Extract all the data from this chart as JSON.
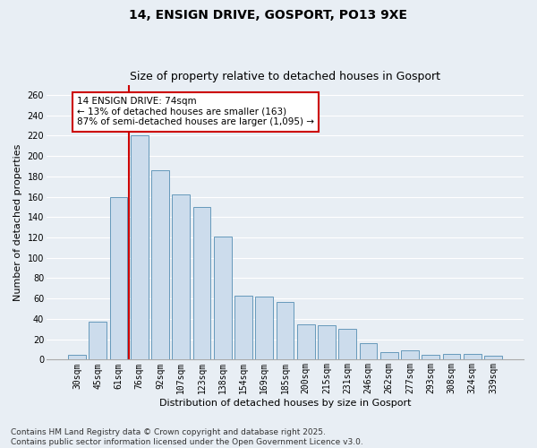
{
  "title1": "14, ENSIGN DRIVE, GOSPORT, PO13 9XE",
  "title2": "Size of property relative to detached houses in Gosport",
  "xlabel": "Distribution of detached houses by size in Gosport",
  "ylabel": "Number of detached properties",
  "categories": [
    "30sqm",
    "45sqm",
    "61sqm",
    "76sqm",
    "92sqm",
    "107sqm",
    "123sqm",
    "138sqm",
    "154sqm",
    "169sqm",
    "185sqm",
    "200sqm",
    "215sqm",
    "231sqm",
    "246sqm",
    "262sqm",
    "277sqm",
    "293sqm",
    "308sqm",
    "324sqm",
    "339sqm"
  ],
  "values": [
    5,
    37,
    160,
    220,
    186,
    162,
    150,
    121,
    63,
    62,
    57,
    35,
    34,
    30,
    16,
    7,
    9,
    5,
    6,
    6,
    4
  ],
  "bar_color": "#ccdcec",
  "bar_edge_color": "#6699bb",
  "vline_color": "#cc0000",
  "annotation_text": "14 ENSIGN DRIVE: 74sqm\n← 13% of detached houses are smaller (163)\n87% of semi-detached houses are larger (1,095) →",
  "annotation_box_color": "white",
  "annotation_box_edge": "#cc0000",
  "ylim": [
    0,
    270
  ],
  "yticks": [
    0,
    20,
    40,
    60,
    80,
    100,
    120,
    140,
    160,
    180,
    200,
    220,
    240,
    260
  ],
  "footer": "Contains HM Land Registry data © Crown copyright and database right 2025.\nContains public sector information licensed under the Open Government Licence v3.0.",
  "bg_color": "#e8eef4",
  "plot_bg_color": "#e8eef4",
  "grid_color": "#ffffff",
  "title_fontsize": 10,
  "subtitle_fontsize": 9,
  "tick_fontsize": 7,
  "label_fontsize": 8,
  "footer_fontsize": 6.5,
  "annotation_fontsize": 7.5
}
